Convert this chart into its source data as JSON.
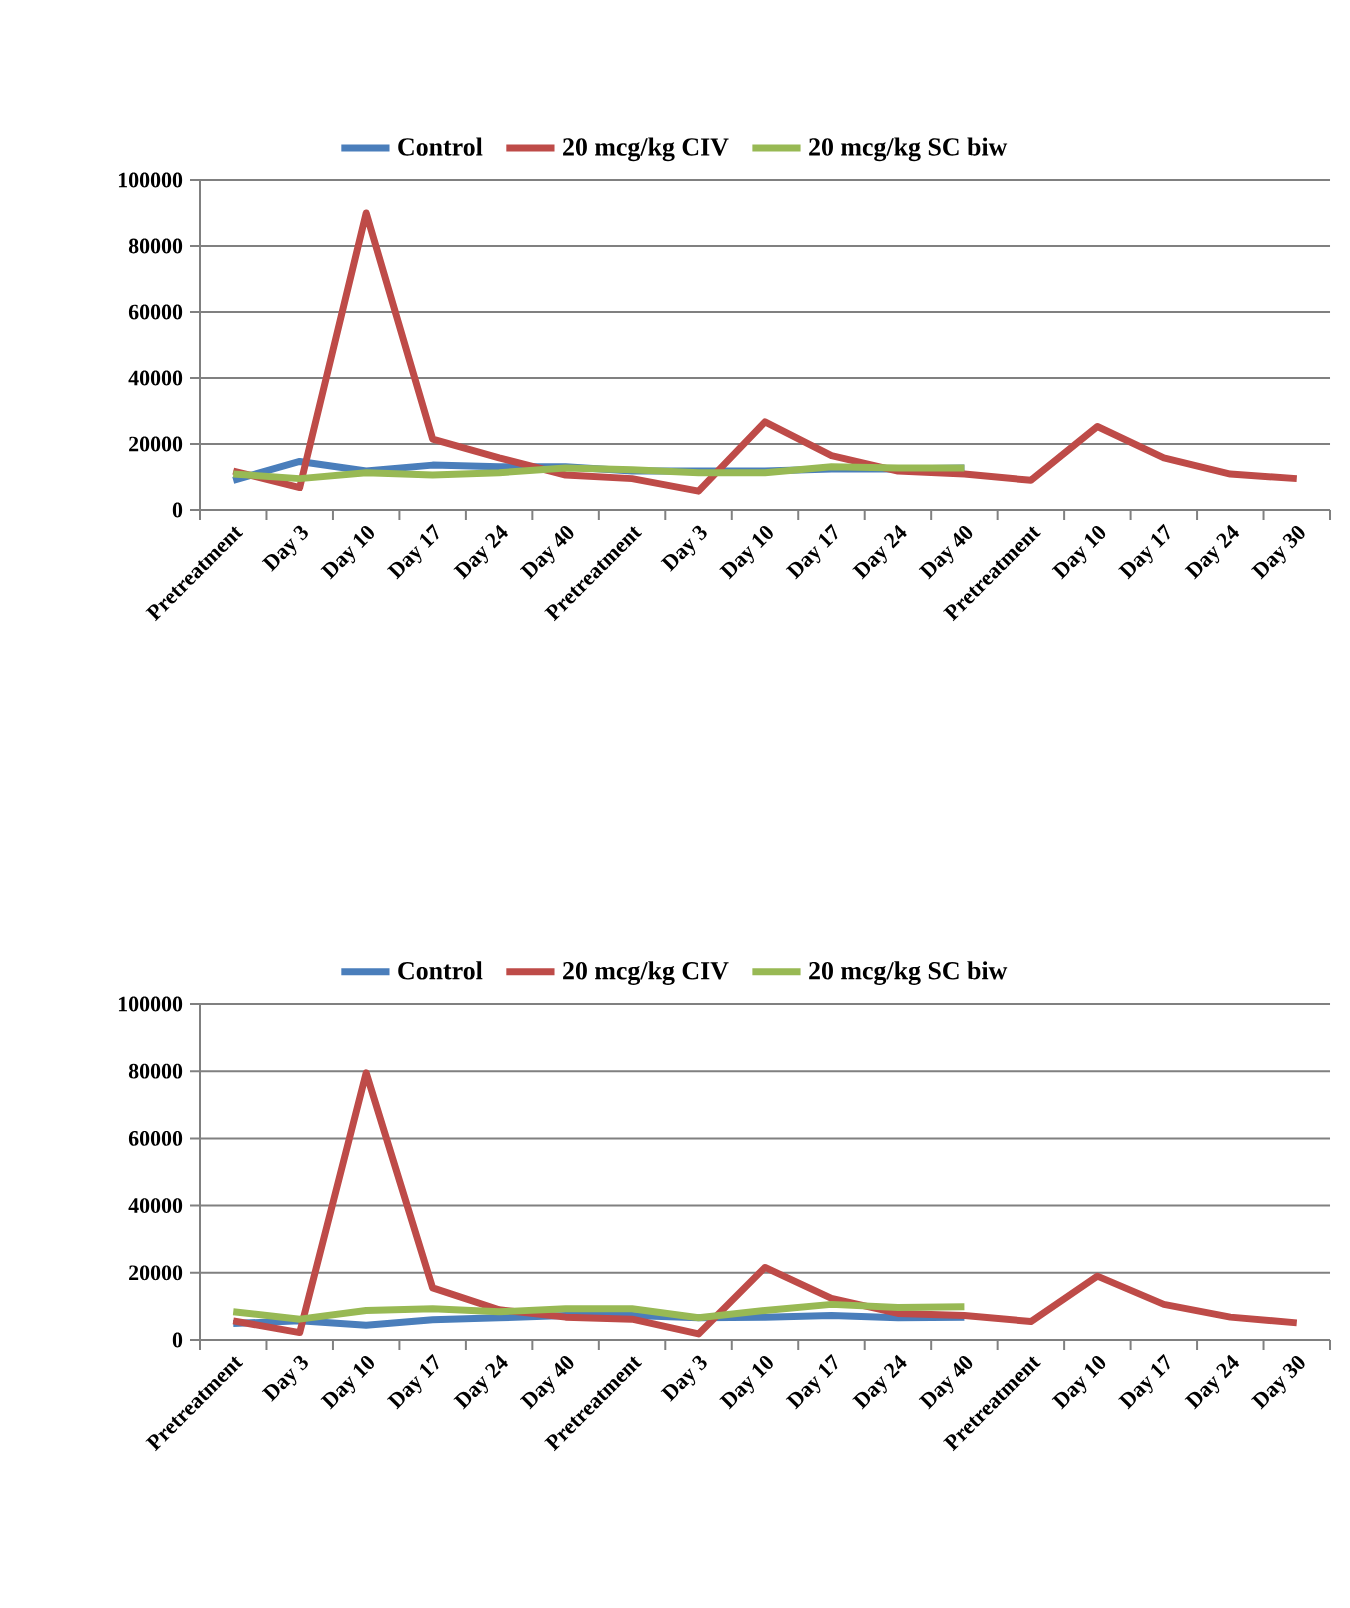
{
  "chart_data": [
    {
      "type": "line",
      "categories": [
        "Pretreatment",
        "Day 3",
        "Day 10",
        "Day 17",
        "Day 24",
        "Day 40",
        "Pretreatment",
        "Day 3",
        "Day 10",
        "Day 17",
        "Day 24",
        "Day 40",
        "Pretreatment",
        "Day 10",
        "Day 17",
        "Day 24",
        "Day 30"
      ],
      "series": [
        {
          "name": "Control",
          "color": "#4a7ebb",
          "values": [
            9000,
            14700,
            11800,
            13600,
            13100,
            13100,
            11800,
            11800,
            11800,
            12400,
            12400,
            12700,
            null,
            null,
            null,
            null,
            null
          ]
        },
        {
          "name": "20 mcg/kg CIV",
          "color": "#be4b48",
          "values": [
            11800,
            6800,
            90000,
            21500,
            15800,
            10600,
            9500,
            5700,
            26700,
            16500,
            11800,
            10900,
            9000,
            25300,
            15800,
            10900,
            9500
          ]
        },
        {
          "name": "20 mcg/kg SC biw",
          "color": "#98b954",
          "values": [
            10900,
            9500,
            11300,
            10600,
            11300,
            12700,
            12200,
            11300,
            11300,
            13100,
            12700,
            12700,
            null,
            null,
            null,
            null,
            null
          ]
        }
      ],
      "ylim": [
        0,
        100000
      ],
      "yticks": [
        0,
        20000,
        40000,
        60000,
        80000,
        100000
      ],
      "grid": "y",
      "legend": "top",
      "marker": "none",
      "line_style": "solid"
    },
    {
      "type": "line",
      "categories": [
        "Pretreatment",
        "Day 3",
        "Day 10",
        "Day 17",
        "Day 24",
        "Day 40",
        "Pretreatment",
        "Day 3",
        "Day 10",
        "Day 17",
        "Day 24",
        "Day 40",
        "Pretreatment",
        "Day 10",
        "Day 17",
        "Day 24",
        "Day 30"
      ],
      "series": [
        {
          "name": "Control",
          "color": "#4a7ebb",
          "values": [
            4900,
            5700,
            4400,
            6000,
            6600,
            7300,
            7300,
            6600,
            6800,
            7300,
            6600,
            6800,
            null,
            null,
            null,
            null,
            null
          ]
        },
        {
          "name": "20 mcg/kg CIV",
          "color": "#be4b48",
          "values": [
            5700,
            2200,
            79500,
            15500,
            9000,
            6800,
            6200,
            1800,
            21600,
            12400,
            7900,
            7300,
            5500,
            19000,
            10600,
            6800,
            5100
          ]
        },
        {
          "name": "20 mcg/kg SC biw",
          "color": "#98b954",
          "values": [
            8400,
            6200,
            8800,
            9300,
            8400,
            9300,
            9300,
            6600,
            8800,
            10600,
            9700,
            9900,
            null,
            null,
            null,
            null,
            null
          ]
        }
      ],
      "ylim": [
        0,
        100000
      ],
      "yticks": [
        0,
        20000,
        40000,
        60000,
        80000,
        100000
      ],
      "grid": "y",
      "legend": "top",
      "marker": "none",
      "line_style": "solid"
    }
  ]
}
